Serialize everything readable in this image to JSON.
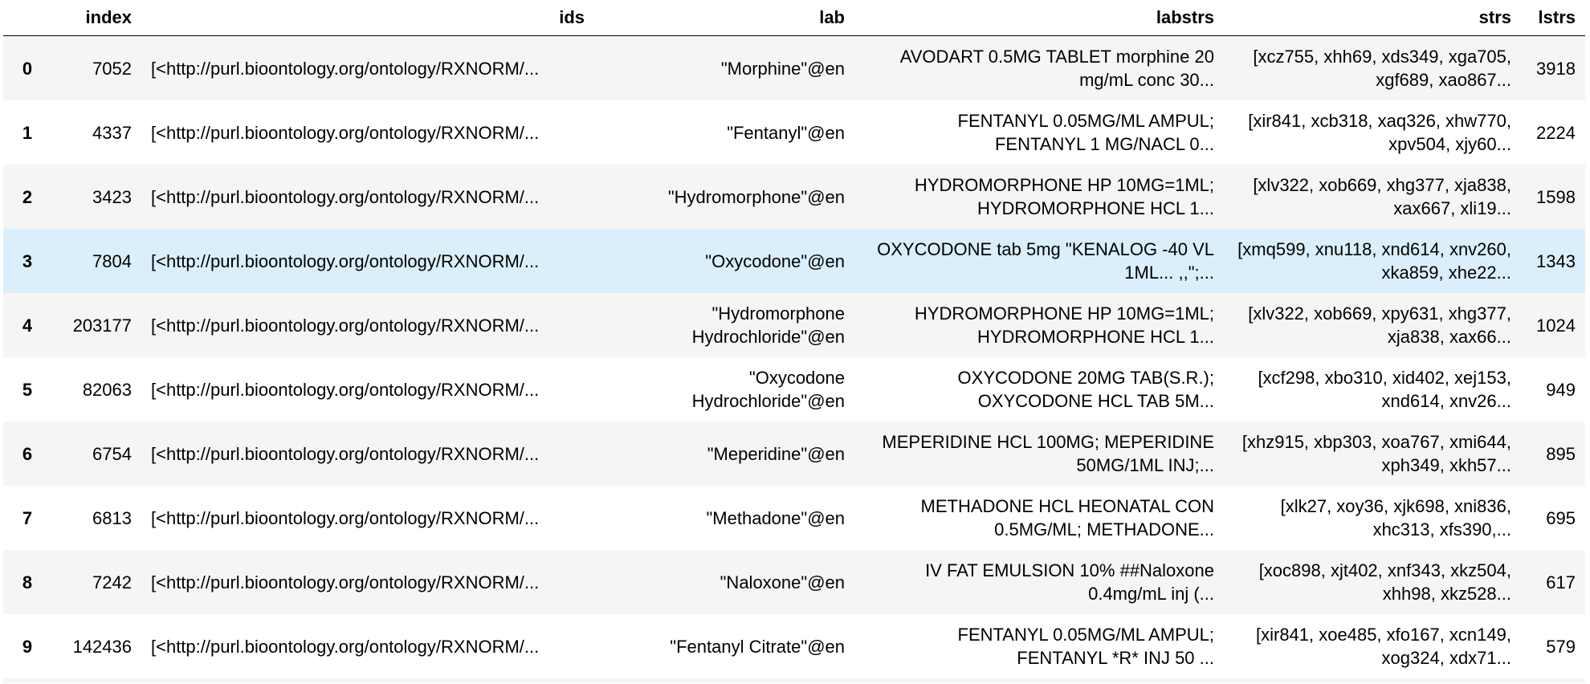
{
  "table": {
    "columns": [
      "",
      "index",
      "ids",
      "lab",
      "labstrs",
      "strs",
      "lstrs"
    ],
    "hover_row": 3,
    "rows": [
      {
        "row": "0",
        "index": "7052",
        "ids": "[<http://purl.bioontology.org/ontology/RXNORM/...",
        "lab": "\"Morphine\"@en",
        "labstrs": "AVODART 0.5MG TABLET morphine 20 mg/mL conc 30...",
        "strs": "[xcz755, xhh69, xds349, xga705, xgf689, xao867...",
        "lstrs": "3918"
      },
      {
        "row": "1",
        "index": "4337",
        "ids": "[<http://purl.bioontology.org/ontology/RXNORM/...",
        "lab": "\"Fentanyl\"@en",
        "labstrs": "FENTANYL 0.05MG/ML AMPUL; FENTANYL 1 MG/NACL 0...",
        "strs": "[xir841, xcb318, xaq326, xhw770, xpv504, xjy60...",
        "lstrs": "2224"
      },
      {
        "row": "2",
        "index": "3423",
        "ids": "[<http://purl.bioontology.org/ontology/RXNORM/...",
        "lab": "\"Hydromorphone\"@en",
        "labstrs": "HYDROMORPHONE HP 10MG=1ML; HYDROMORPHONE HCL 1...",
        "strs": "[xlv322, xob669, xhg377, xja838, xax667, xli19...",
        "lstrs": "1598"
      },
      {
        "row": "3",
        "index": "7804",
        "ids": "[<http://purl.bioontology.org/ontology/RXNORM/...",
        "lab": "\"Oxycodone\"@en",
        "labstrs": "OXYCODONE tab 5mg \"KENALOG -40 VL 1ML... ,,\";...",
        "strs": "[xmq599, xnu118, xnd614, xnv260, xka859, xhe22...",
        "lstrs": "1343"
      },
      {
        "row": "4",
        "index": "203177",
        "ids": "[<http://purl.bioontology.org/ontology/RXNORM/...",
        "lab": "\"Hydromorphone Hydrochloride\"@en",
        "labstrs": "HYDROMORPHONE HP 10MG=1ML; HYDROMORPHONE HCL 1...",
        "strs": "[xlv322, xob669, xpy631, xhg377, xja838, xax66...",
        "lstrs": "1024"
      },
      {
        "row": "5",
        "index": "82063",
        "ids": "[<http://purl.bioontology.org/ontology/RXNORM/...",
        "lab": "\"Oxycodone Hydrochloride\"@en",
        "labstrs": "OXYCODONE 20MG TAB(S.R.); OXYCODONE HCL TAB 5M...",
        "strs": "[xcf298, xbo310, xid402, xej153, xnd614, xnv26...",
        "lstrs": "949"
      },
      {
        "row": "6",
        "index": "6754",
        "ids": "[<http://purl.bioontology.org/ontology/RXNORM/...",
        "lab": "\"Meperidine\"@en",
        "labstrs": "MEPERIDINE HCL 100MG; MEPERIDINE 50MG/1ML INJ;...",
        "strs": "[xhz915, xbp303, xoa767, xmi644, xph349, xkh57...",
        "lstrs": "895"
      },
      {
        "row": "7",
        "index": "6813",
        "ids": "[<http://purl.bioontology.org/ontology/RXNORM/...",
        "lab": "\"Methadone\"@en",
        "labstrs": "METHADONE HCL HEONATAL CON 0.5MG/ML; METHADONE...",
        "strs": "[xlk27, xoy36, xjk698, xni836, xhc313, xfs390,...",
        "lstrs": "695"
      },
      {
        "row": "8",
        "index": "7242",
        "ids": "[<http://purl.bioontology.org/ontology/RXNORM/...",
        "lab": "\"Naloxone\"@en",
        "labstrs": "IV FAT EMULSION 10% ##Naloxone 0.4mg/mL inj (...",
        "strs": "[xoc898, xjt402, xnf343, xkz504, xhh98, xkz528...",
        "lstrs": "617"
      },
      {
        "row": "9",
        "index": "142436",
        "ids": "[<http://purl.bioontology.org/ontology/RXNORM/...",
        "lab": "\"Fentanyl Citrate\"@en",
        "labstrs": "FENTANYL 0.05MG/ML AMPUL; FENTANYL *R* INJ 50 ...",
        "strs": "[xir841, xoe485, xfo167, xcn149, xog324, xdx71...",
        "lstrs": "579"
      }
    ]
  }
}
